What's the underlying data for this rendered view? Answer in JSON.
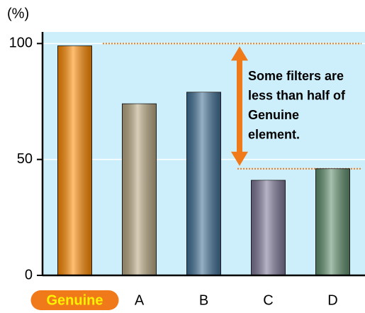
{
  "chart_data": {
    "type": "bar",
    "y_label": "(%)",
    "categories": [
      "Genuine",
      "A",
      "B",
      "C",
      "D"
    ],
    "values": [
      99,
      74,
      79,
      41,
      46
    ],
    "colors": [
      "#ff8a00",
      "#b8a882",
      "#3f6f95",
      "#7d7798",
      "#5f8f6c"
    ],
    "ylim": [
      0,
      105
    ],
    "yticks": [
      0,
      50,
      100
    ],
    "grid": true,
    "reference_lines": [
      100,
      46
    ],
    "annotation": [
      "Some filters are",
      "less than half of",
      "Genuine",
      "element."
    ]
  }
}
